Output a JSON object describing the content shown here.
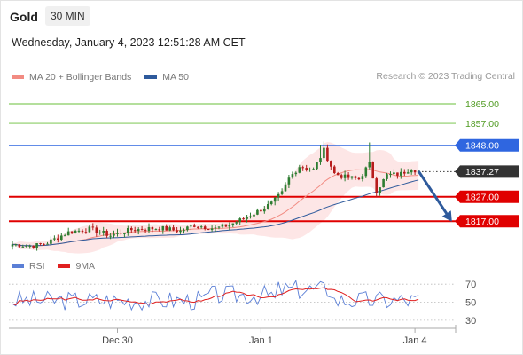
{
  "header": {
    "symbol": "Gold",
    "timeframe": "30 MIN"
  },
  "datetime": "Wednesday, January 4, 2023 12:51:28 AM CET",
  "legend": {
    "items": [
      {
        "label": "MA 20 + Bollinger Bands",
        "color": "#f28b82"
      },
      {
        "label": "MA 50",
        "color": "#2e5a9c"
      }
    ],
    "credit": "Research © 2023 Trading Central"
  },
  "rsi_legend": {
    "items": [
      {
        "label": "RSI",
        "color": "#5b7fd6"
      },
      {
        "label": "9MA",
        "color": "#e02020"
      }
    ]
  },
  "colors": {
    "up": "#2e7d32",
    "down": "#b71c1c",
    "bb_fill": "#fde2e2",
    "ma20": "#f28b82",
    "ma50": "#2e5a9c",
    "support": "#e00000",
    "resistance": "#2f66e0",
    "target": "#6abf3a",
    "arrow": "#2e5a9c",
    "current": "#333333"
  },
  "chart_data": {
    "type": "candlestick",
    "y_range": [
      1804,
      1873
    ],
    "x_range": [
      0,
      117
    ],
    "x_ticks": [
      {
        "label": "Dec 30",
        "index": 30
      },
      {
        "label": "Jan 1",
        "index": 71
      },
      {
        "label": "Jan 4",
        "index": 115
      }
    ],
    "levels": [
      {
        "value": 1865.0,
        "label": "1865.00",
        "kind": "target"
      },
      {
        "value": 1857.0,
        "label": "1857.00",
        "kind": "target"
      },
      {
        "value": 1848.0,
        "label": "1848.00",
        "kind": "resistance"
      },
      {
        "value": 1837.27,
        "label": "1837.27",
        "kind": "current"
      },
      {
        "value": 1827.0,
        "label": "1827.00",
        "kind": "support"
      },
      {
        "value": 1817.0,
        "label": "1817.00",
        "kind": "support"
      }
    ],
    "arrow": {
      "from_index": 116,
      "from_price": 1837.5,
      "to_index": 125,
      "to_price": 1818.0
    },
    "rsi": {
      "y_range": [
        25,
        78
      ],
      "ticks": [
        70,
        50,
        30
      ]
    }
  }
}
